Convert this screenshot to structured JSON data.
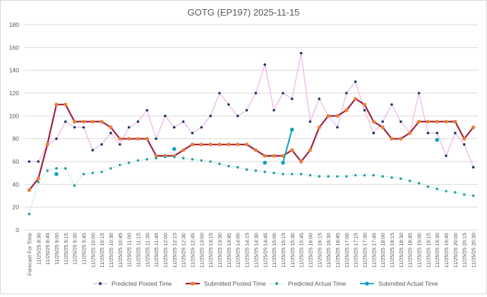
{
  "chart_data": {
    "type": "line",
    "title": "GOTG (EP197) 2025-11-15",
    "xlabel": "",
    "ylabel": "",
    "ylim": [
      0,
      180
    ],
    "yticks": [
      0,
      20,
      40,
      60,
      80,
      100,
      120,
      140,
      160,
      180
    ],
    "grid": true,
    "legend_position": "bottom",
    "categories": [
      "Forecast For Time",
      "11/25/25 8:30",
      "11/25/25 8:45",
      "11/25/25 9:00",
      "11/25/25 9:15",
      "11/25/25 9:30",
      "11/25/25 9:45",
      "11/25/25 10:00",
      "11/25/25 10:15",
      "11/25/25 10:30",
      "11/25/25 10:45",
      "11/25/25 11:00",
      "11/25/25 11:15",
      "11/25/25 11:30",
      "11/25/25 11:45",
      "11/25/25 12:00",
      "11/25/25 12:15",
      "11/25/25 12:30",
      "11/25/25 12:45",
      "11/25/25 13:00",
      "11/25/25 13:15",
      "11/25/25 13:30",
      "11/25/25 13:45",
      "11/25/25 14:00",
      "11/25/25 14:15",
      "11/25/25 14:30",
      "11/25/25 14:45",
      "11/25/25 15:00",
      "11/25/25 15:15",
      "11/25/25 15:30",
      "11/25/25 15:45",
      "11/25/25 16:00",
      "11/25/25 16:15",
      "11/25/25 16:30",
      "11/25/25 16:45",
      "11/25/25 17:00",
      "11/25/25 17:15",
      "11/25/25 17:30",
      "11/25/25 17:45",
      "11/25/25 18:00",
      "11/25/25 18:15",
      "11/25/25 18:30",
      "11/25/25 18:45",
      "11/25/25 19:00",
      "11/25/25 19:15",
      "11/25/25 19:30",
      "11/25/25 19:45",
      "11/25/25 20:00",
      "11/25/25 20:15",
      "11/25/25 20:30"
    ],
    "series": [
      {
        "name": "Predicted Posted Time",
        "line_color": "#f2c4ec",
        "marker_color": "#1f3864",
        "values": [
          60,
          60,
          75,
          80,
          95,
          90,
          90,
          70,
          75,
          85,
          75,
          90,
          95,
          105,
          80,
          100,
          90,
          95,
          85,
          90,
          100,
          120,
          110,
          100,
          105,
          120,
          145,
          105,
          120,
          115,
          155,
          95,
          115,
          100,
          90,
          120,
          130,
          105,
          85,
          95,
          110,
          95,
          85,
          120,
          85,
          85,
          65,
          85,
          75,
          55
        ]
      },
      {
        "name": "Submitted Posted Time",
        "line_color": "#a0213a",
        "marker_color": "#ed7d31",
        "values": [
          35,
          45,
          75,
          110,
          110,
          95,
          95,
          95,
          95,
          90,
          80,
          80,
          80,
          80,
          65,
          65,
          65,
          70,
          75,
          75,
          75,
          75,
          75,
          75,
          75,
          70,
          65,
          65,
          65,
          70,
          60,
          70,
          90,
          100,
          100,
          105,
          115,
          110,
          95,
          90,
          80,
          80,
          85,
          95,
          95,
          95,
          95,
          95,
          80,
          90
        ]
      },
      {
        "name": "Predicted Actual Time",
        "line_color": "#c6efef",
        "marker_color": "#2e9e9a",
        "values": [
          14,
          42,
          52,
          54,
          54,
          39,
          49,
          50,
          51,
          54,
          57,
          59,
          61,
          62,
          63,
          64,
          64,
          63,
          62,
          61,
          60,
          58,
          56,
          55,
          53,
          52,
          51,
          50,
          49,
          49,
          49,
          48,
          47,
          47,
          47,
          47,
          48,
          48,
          48,
          47,
          46,
          45,
          43,
          41,
          38,
          36,
          34,
          33,
          31,
          30
        ]
      },
      {
        "name": "Submitted Actual Time",
        "line_color": "#0ea0c8",
        "marker_color": "#0ea0c8",
        "values": [
          null,
          null,
          null,
          49,
          null,
          null,
          null,
          null,
          null,
          null,
          null,
          null,
          null,
          null,
          null,
          null,
          71,
          null,
          null,
          null,
          null,
          null,
          null,
          null,
          null,
          null,
          59,
          null,
          59,
          88,
          null,
          null,
          null,
          null,
          null,
          null,
          null,
          null,
          null,
          null,
          null,
          null,
          null,
          null,
          null,
          79,
          null,
          null,
          null,
          null
        ]
      }
    ]
  }
}
